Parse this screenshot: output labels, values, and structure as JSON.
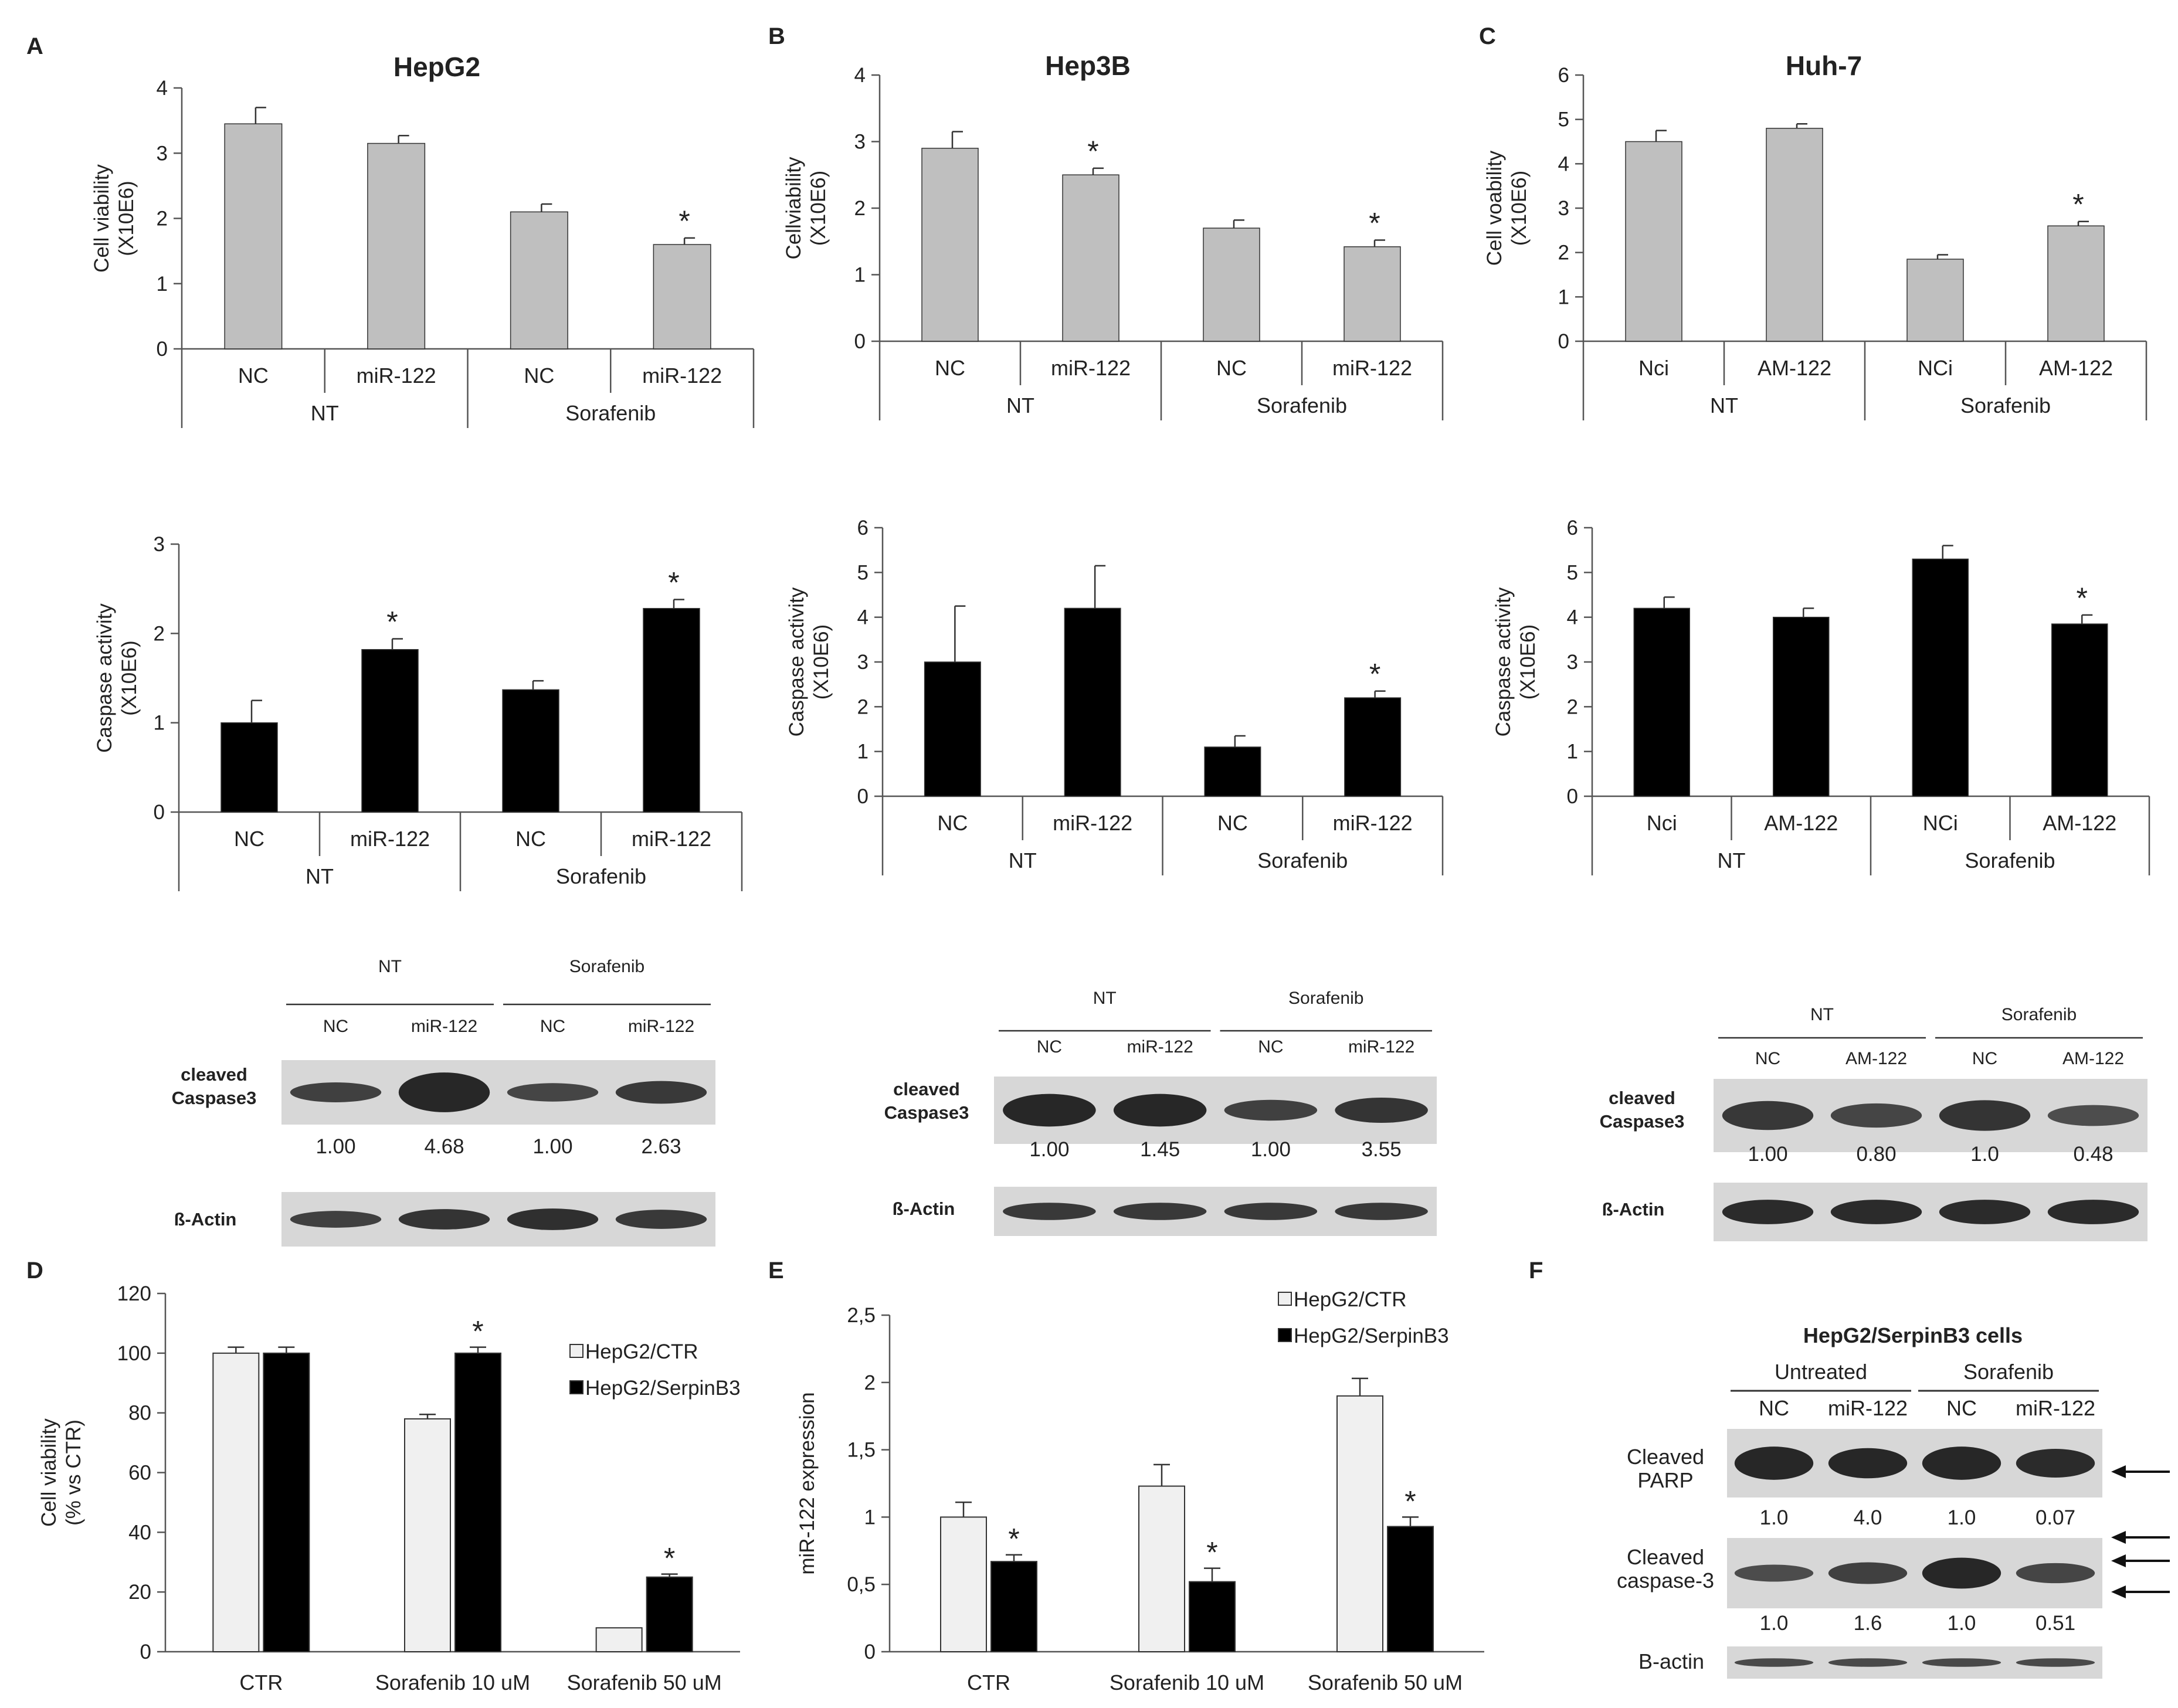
{
  "panel_labels": {
    "A": "A",
    "B": "B",
    "C": "C",
    "D": "D",
    "E": "E",
    "F": "F"
  },
  "chart_data": [
    {
      "id": "A_viability",
      "type": "bar",
      "title": "HepG2",
      "ylabel": [
        "Cell viability",
        "(X10E6)"
      ],
      "ylim": [
        0,
        4
      ],
      "yticks": [
        "0",
        "1",
        "2",
        "3",
        "4"
      ],
      "categories": [
        "NC",
        "miR-122",
        "NC",
        "miR-122"
      ],
      "groups": [
        "NT",
        "Sorafenib"
      ],
      "values": [
        3.45,
        3.15,
        2.1,
        1.6
      ],
      "errors": [
        0.25,
        0.12,
        0.12,
        0.1
      ],
      "stars": [
        false,
        false,
        false,
        true
      ],
      "color": "#bfbfbf"
    },
    {
      "id": "B_viability",
      "type": "bar",
      "title": "Hep3B",
      "ylabel": [
        "Cellviability",
        "(X10E6)"
      ],
      "ylim": [
        0,
        4
      ],
      "yticks": [
        "0",
        "1",
        "2",
        "3",
        "4"
      ],
      "categories": [
        "NC",
        "miR-122",
        "NC",
        "miR-122"
      ],
      "groups": [
        "NT",
        "Sorafenib"
      ],
      "values": [
        2.9,
        2.5,
        1.7,
        1.42
      ],
      "errors": [
        0.25,
        0.1,
        0.12,
        0.1
      ],
      "stars": [
        false,
        true,
        false,
        true
      ],
      "color": "#bfbfbf"
    },
    {
      "id": "C_viability",
      "type": "bar",
      "title": "Huh-7",
      "ylabel": [
        "Cell voability",
        "(X10E6)"
      ],
      "ylim": [
        0,
        6
      ],
      "yticks": [
        "0",
        "1",
        "2",
        "3",
        "4",
        "5",
        "6"
      ],
      "categories": [
        "Nci",
        "AM-122",
        "NCi",
        "AM-122"
      ],
      "groups": [
        "NT",
        "Sorafenib"
      ],
      "values": [
        4.5,
        4.8,
        1.85,
        2.6
      ],
      "errors": [
        0.25,
        0.1,
        0.1,
        0.1
      ],
      "stars": [
        false,
        false,
        false,
        true
      ],
      "color": "#bfbfbf"
    },
    {
      "id": "A_caspase",
      "type": "bar",
      "title": "",
      "ylabel": [
        "Caspase activity",
        "(X10E6)"
      ],
      "ylim": [
        0,
        3
      ],
      "yticks": [
        "0",
        "1",
        "2",
        "3"
      ],
      "categories": [
        "NC",
        "miR-122",
        "NC",
        "miR-122"
      ],
      "groups": [
        "NT",
        "Sorafenib"
      ],
      "values": [
        1.0,
        1.82,
        1.37,
        2.28
      ],
      "errors": [
        0.25,
        0.12,
        0.1,
        0.1
      ],
      "stars": [
        false,
        true,
        false,
        true
      ],
      "color": "#000000"
    },
    {
      "id": "B_caspase",
      "type": "bar",
      "title": "",
      "ylabel": [
        "Caspase activity",
        "(X10E6)"
      ],
      "ylim": [
        0,
        6
      ],
      "yticks": [
        "0",
        "1",
        "2",
        "3",
        "4",
        "5",
        "6"
      ],
      "categories": [
        "NC",
        "miR-122",
        "NC",
        "miR-122"
      ],
      "groups": [
        "NT",
        "Sorafenib"
      ],
      "values": [
        3.0,
        4.2,
        1.1,
        2.2
      ],
      "errors": [
        1.25,
        0.95,
        0.25,
        0.15
      ],
      "stars": [
        false,
        false,
        false,
        true
      ],
      "color": "#000000"
    },
    {
      "id": "C_caspase",
      "type": "bar",
      "title": "",
      "ylabel": [
        "Caspase activity",
        "(X10E6)"
      ],
      "ylim": [
        0,
        6
      ],
      "yticks": [
        "0",
        "1",
        "2",
        "3",
        "4",
        "5",
        "6"
      ],
      "categories": [
        "Nci",
        "AM-122",
        "NCi",
        "AM-122"
      ],
      "groups": [
        "NT",
        "Sorafenib"
      ],
      "values": [
        4.2,
        4.0,
        5.3,
        3.85
      ],
      "errors": [
        0.25,
        0.2,
        0.3,
        0.2
      ],
      "stars": [
        false,
        false,
        false,
        true
      ],
      "color": "#000000"
    },
    {
      "id": "D",
      "type": "bar",
      "ylabel": [
        "Cell viability",
        "(% vs CTR)"
      ],
      "ylim": [
        0,
        120
      ],
      "yticks": [
        "0",
        "20",
        "40",
        "60",
        "80",
        "100",
        "120"
      ],
      "categories": [
        "CTR",
        "Sorafenib 10 uM",
        "Sorafenib 50 uM"
      ],
      "series": [
        {
          "name": "HepG2/CTR",
          "color": "#f0f0f0",
          "values": [
            100,
            78,
            8
          ],
          "errors": [
            2,
            1.5,
            0
          ],
          "stars": [
            false,
            false,
            false
          ]
        },
        {
          "name": "HepG2/SerpinB3",
          "color": "#000000",
          "values": [
            100,
            100,
            25
          ],
          "errors": [
            2,
            2,
            1
          ],
          "stars": [
            false,
            true,
            true
          ]
        }
      ]
    },
    {
      "id": "E",
      "type": "bar",
      "ylabel": [
        "miR-122  expression"
      ],
      "ylim": [
        0,
        2.5
      ],
      "yticks": [
        "0",
        "0,5",
        "1",
        "1,5",
        "2",
        "2,5"
      ],
      "categories": [
        "CTR",
        "Sorafenib 10 uM",
        "Sorafenib 50 uM"
      ],
      "series": [
        {
          "name": "HepG2/CTR",
          "color": "#f0f0f0",
          "values": [
            1.0,
            1.23,
            1.9
          ],
          "errors": [
            0.11,
            0.16,
            0.13
          ],
          "stars": [
            false,
            false,
            false
          ]
        },
        {
          "name": "HepG2/SerpinB3",
          "color": "#000000",
          "values": [
            0.67,
            0.52,
            0.93
          ],
          "errors": [
            0.05,
            0.1,
            0.07
          ],
          "stars": [
            true,
            true,
            true
          ]
        }
      ]
    }
  ],
  "blots": {
    "A": {
      "groups": [
        "NT",
        "Sorafenib"
      ],
      "columns": [
        "NC",
        "miR-122",
        "NC",
        "miR-122"
      ],
      "band1_label": [
        "cleaved",
        "Caspase3"
      ],
      "band1_values": [
        "1.00",
        "4.68",
        "1.00",
        "2.63"
      ],
      "band2_label": "ß-Actin"
    },
    "B": {
      "groups": [
        "NT",
        "Sorafenib"
      ],
      "columns": [
        "NC",
        "miR-122",
        "NC",
        "miR-122"
      ],
      "band1_label": [
        "cleaved",
        "Caspase3"
      ],
      "band1_values": [
        "1.00",
        "1.45",
        "1.00",
        "3.55"
      ],
      "band2_label": "ß-Actin"
    },
    "C": {
      "groups": [
        "NT",
        "Sorafenib"
      ],
      "columns": [
        "NC",
        "AM-122",
        "NC",
        "AM-122"
      ],
      "band1_label": [
        "cleaved",
        "Caspase3"
      ],
      "band1_values": [
        "1.00",
        "0.80",
        "1.0",
        "0.48"
      ],
      "band2_label": "ß-Actin"
    },
    "F": {
      "title": "HepG2/SerpinB3 cells",
      "groups": [
        "Untreated",
        "Sorafenib"
      ],
      "columns": [
        "NC",
        "miR-122",
        "NC",
        "miR-122"
      ],
      "band1_label": [
        "Cleaved",
        "PARP"
      ],
      "band1_values": [
        "1.0",
        "4.0",
        "1.0",
        "0.07"
      ],
      "band2_label": [
        "Cleaved",
        "caspase-3"
      ],
      "band2_values": [
        "1.0",
        "1.6",
        "1.0",
        "0.51"
      ],
      "band3_label": "B-actin"
    }
  }
}
